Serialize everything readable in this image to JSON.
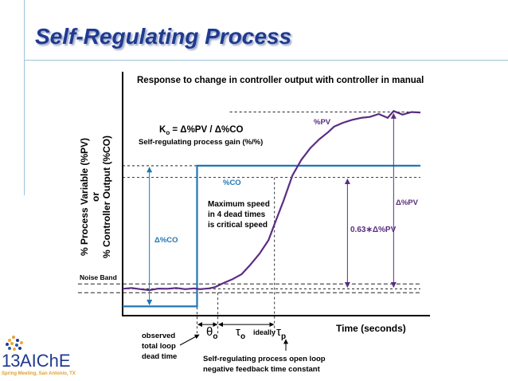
{
  "slide": {
    "title": "Self-Regulating Process"
  },
  "footer": {
    "logo_number": "13",
    "logo_name": "AIChE",
    "logo_subtitle": "Spring Meeting, San Antonio, TX"
  },
  "chart_data": {
    "type": "line",
    "title": "Response to change in controller output with controller in manual",
    "xlabel": "Time (seconds)",
    "ylabel_line1": "% Process Variable (%PV)",
    "ylabel_line2": "or",
    "ylabel_line3": "% Controller Output (%CO)",
    "grid": false,
    "series": [
      {
        "name": "%PV",
        "color": "#5a2d82",
        "x": [
          0,
          3,
          6,
          9,
          12,
          15,
          18,
          21,
          24,
          26,
          29,
          31,
          34,
          37,
          40,
          43,
          46,
          49,
          51,
          54,
          57,
          60,
          63,
          66,
          69,
          71,
          74,
          77,
          80,
          83,
          86,
          89,
          91,
          94,
          97,
          100
        ],
        "y": [
          6,
          6.4,
          5.8,
          5.3,
          6.1,
          6,
          6.4,
          5.8,
          6.2,
          5.8,
          6.2,
          6.8,
          9,
          11,
          13.5,
          18.5,
          24,
          31,
          39,
          51,
          64,
          72,
          78,
          82.5,
          86.2,
          89,
          91,
          92.5,
          93.5,
          94,
          95.5,
          93.5,
          97,
          95.2,
          96.5,
          96.3
        ]
      },
      {
        "name": "%CO",
        "color": "#1f77b4",
        "x": [
          0,
          25,
          25,
          100
        ],
        "y": [
          -3,
          -3,
          69,
          69
        ]
      }
    ],
    "reference_lines": {
      "pv_initial": 6,
      "pv_final": 96.5,
      "pv_63pct": 63,
      "co_final": 69,
      "noise_band": [
        4,
        8.5
      ],
      "dead_time_x": [
        25,
        32
      ],
      "tau_x": [
        32,
        51
      ]
    },
    "annotations": {
      "gain_formula": "Ko = Δ%PV / Δ%CO",
      "gain_formula_main": "K",
      "gain_formula_sub": "o",
      "gain_formula_rest": " = Δ%PV / Δ%CO",
      "gain_desc": "Self-regulating process gain (%/%)",
      "pv_label": "%PV",
      "co_label": "%CO",
      "max_speed_1": "Maximum speed",
      "max_speed_2": "in 4 dead times",
      "max_speed_3": "is critical speed",
      "delta_pv": "Δ%PV",
      "delta_co": "Δ%CO",
      "frac_pv": "0.63∗Δ%PV",
      "noise_band": "Noise Band",
      "theta_main": "θ",
      "theta_sub": "o",
      "tau_o_main": "τ",
      "tau_o_sub": "o",
      "ideally": "ideally",
      "tau_p_main": "τ",
      "tau_p_sub": "p",
      "observed_1": "observed",
      "observed_2": "total loop",
      "observed_3": "dead time",
      "tau_desc_1": "Self-regulating process open loop",
      "tau_desc_2": "negative feedback time constant"
    }
  }
}
